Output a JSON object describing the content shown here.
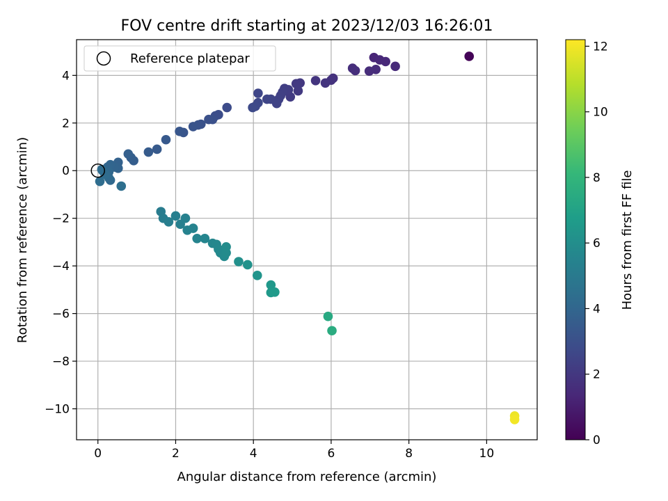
{
  "chart_data": {
    "type": "scatter",
    "title": "FOV centre drift starting at 2023/12/03 16:26:01",
    "xlabel": "Angular distance from reference (arcmin)",
    "ylabel": "Rotation from reference (arcmin)",
    "colorbar_label": "Hours from first FF file",
    "xlim": [
      -0.55,
      11.3
    ],
    "ylim": [
      -11.3,
      5.5
    ],
    "clim": [
      0,
      12.2
    ],
    "x_ticks": [
      0,
      2,
      4,
      6,
      8,
      10
    ],
    "y_ticks": [
      -10,
      -8,
      -6,
      -4,
      -2,
      0,
      2,
      4
    ],
    "colorbar_ticks": [
      0,
      2,
      4,
      6,
      8,
      10,
      12
    ],
    "grid": true,
    "legend": {
      "placement": "top-left",
      "entries": [
        "Reference platepar"
      ]
    },
    "reference_point": {
      "x": 0,
      "y": 0
    },
    "colormap": [
      "#440154",
      "#482878",
      "#3e4989",
      "#31688e",
      "#26828e",
      "#1f9e89",
      "#35b779",
      "#6ece58",
      "#b5de2b",
      "#fde725"
    ],
    "series": [
      {
        "points": [
          [
            9.55,
            4.8,
            0.1
          ],
          [
            7.1,
            4.75,
            1.3
          ],
          [
            7.25,
            4.65,
            1.35
          ],
          [
            7.4,
            4.58,
            1.4
          ],
          [
            7.65,
            4.38,
            1.45
          ],
          [
            7.15,
            4.25,
            1.5
          ],
          [
            6.98,
            4.18,
            1.55
          ],
          [
            6.55,
            4.3,
            1.6
          ],
          [
            6.62,
            4.2,
            1.65
          ],
          [
            6.05,
            3.88,
            1.75
          ],
          [
            6.0,
            3.8,
            1.8
          ],
          [
            5.85,
            3.68,
            1.85
          ],
          [
            5.6,
            3.78,
            1.9
          ],
          [
            5.2,
            3.68,
            2.0
          ],
          [
            5.1,
            3.65,
            2.05
          ],
          [
            5.15,
            3.35,
            2.1
          ],
          [
            4.95,
            3.1,
            2.15
          ],
          [
            4.9,
            3.4,
            2.2
          ],
          [
            4.8,
            3.45,
            2.25
          ],
          [
            4.75,
            3.3,
            2.3
          ],
          [
            4.7,
            3.15,
            2.35
          ],
          [
            4.65,
            3.0,
            2.4
          ],
          [
            4.6,
            2.82,
            2.45
          ],
          [
            4.45,
            3.0,
            2.5
          ],
          [
            4.35,
            3.0,
            2.55
          ],
          [
            4.12,
            3.25,
            2.6
          ],
          [
            4.12,
            2.85,
            2.65
          ],
          [
            4.05,
            2.7,
            2.7
          ],
          [
            3.98,
            2.65,
            2.75
          ],
          [
            3.32,
            2.65,
            2.85
          ],
          [
            3.1,
            2.35,
            2.9
          ],
          [
            3.02,
            2.3,
            2.95
          ],
          [
            2.95,
            2.15,
            3.0
          ],
          [
            2.85,
            2.15,
            3.05
          ],
          [
            2.65,
            1.95,
            3.1
          ],
          [
            2.58,
            1.92,
            3.15
          ],
          [
            2.45,
            1.85,
            3.2
          ],
          [
            2.2,
            1.6,
            3.25
          ],
          [
            2.1,
            1.65,
            3.3
          ],
          [
            1.75,
            1.3,
            3.4
          ],
          [
            1.52,
            0.9,
            3.45
          ],
          [
            1.3,
            0.78,
            3.5
          ],
          [
            0.92,
            0.42,
            3.6
          ],
          [
            0.85,
            0.55,
            3.65
          ],
          [
            0.78,
            0.7,
            3.7
          ],
          [
            0.52,
            0.35,
            3.8
          ],
          [
            0.52,
            0.1,
            3.85
          ],
          [
            0.42,
            0.15,
            3.9
          ],
          [
            0.32,
            0.25,
            3.95
          ],
          [
            0.25,
            0.15,
            4.0
          ],
          [
            0.28,
            -0.05,
            4.05
          ],
          [
            0.32,
            -0.4,
            4.1
          ],
          [
            0.28,
            -0.3,
            4.15
          ],
          [
            0.12,
            0.0,
            4.2
          ],
          [
            0.18,
            -0.15,
            4.25
          ],
          [
            0.1,
            0.05,
            4.3
          ],
          [
            0.05,
            -0.45,
            4.35
          ],
          [
            0.6,
            -0.65,
            4.45
          ],
          [
            1.62,
            -1.72,
            5.1
          ],
          [
            1.68,
            -2.0,
            5.15
          ],
          [
            1.82,
            -2.15,
            5.2
          ],
          [
            2.0,
            -1.9,
            5.25
          ],
          [
            2.12,
            -2.25,
            5.3
          ],
          [
            2.25,
            -2.0,
            5.35
          ],
          [
            2.3,
            -2.5,
            5.4
          ],
          [
            2.45,
            -2.42,
            5.45
          ],
          [
            2.55,
            -2.85,
            5.5
          ],
          [
            2.75,
            -2.85,
            5.55
          ],
          [
            2.95,
            -3.05,
            5.6
          ],
          [
            3.05,
            -3.1,
            5.65
          ],
          [
            3.1,
            -3.3,
            5.7
          ],
          [
            3.15,
            -3.45,
            5.75
          ],
          [
            3.25,
            -3.6,
            5.8
          ],
          [
            3.3,
            -3.45,
            5.85
          ],
          [
            3.3,
            -3.2,
            5.9
          ],
          [
            3.62,
            -3.82,
            6.1
          ],
          [
            3.85,
            -3.95,
            6.2
          ],
          [
            4.1,
            -4.4,
            6.3
          ],
          [
            4.45,
            -4.8,
            6.5
          ],
          [
            4.45,
            -5.12,
            6.55
          ],
          [
            4.55,
            -5.1,
            6.6
          ],
          [
            5.92,
            -6.12,
            7.4
          ],
          [
            6.02,
            -6.72,
            7.5
          ],
          [
            10.72,
            -10.3,
            11.9
          ],
          [
            10.72,
            -10.45,
            12.0
          ]
        ]
      }
    ]
  }
}
